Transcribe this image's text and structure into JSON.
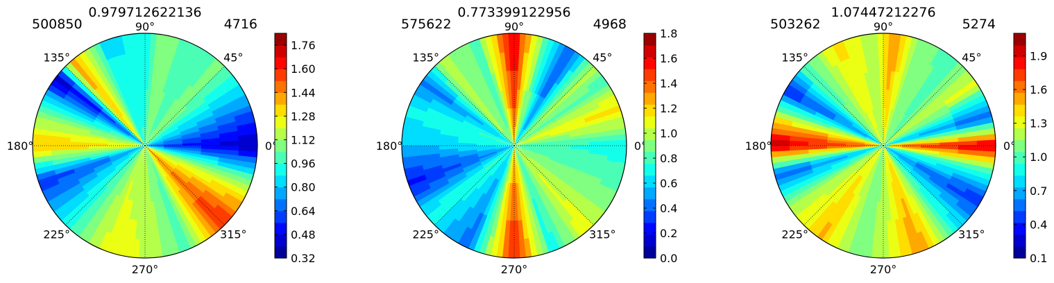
{
  "chart_data": [
    {
      "type": "heatmap",
      "subtype": "polar-filled-contour",
      "title": "0.979712622136",
      "left_label": "500850",
      "right_label": "4716",
      "angle_ticks": [
        "0°",
        "45°",
        "90°",
        "135°",
        "180°",
        "225°",
        "270°",
        "315°"
      ],
      "colorbar": {
        "ticks": [
          "0.32",
          "0.48",
          "0.64",
          "0.80",
          "0.96",
          "1.12",
          "1.28",
          "1.44",
          "1.60",
          "1.76"
        ],
        "vmin": 0.32,
        "vmax": 1.84
      },
      "colormap": "jet",
      "grid": true,
      "angular_profile": [
        {
          "angle": 0,
          "value": 0.35
        },
        {
          "angle": 22,
          "value": 0.7
        },
        {
          "angle": 45,
          "value": 1.05
        },
        {
          "angle": 67,
          "value": 1.0
        },
        {
          "angle": 80,
          "value": 1.1
        },
        {
          "angle": 90,
          "value": 0.9
        },
        {
          "angle": 112,
          "value": 0.85
        },
        {
          "angle": 130,
          "value": 1.45
        },
        {
          "angle": 142,
          "value": 0.4
        },
        {
          "angle": 160,
          "value": 1.0
        },
        {
          "angle": 180,
          "value": 1.4
        },
        {
          "angle": 200,
          "value": 0.55
        },
        {
          "angle": 225,
          "value": 0.9
        },
        {
          "angle": 250,
          "value": 1.25
        },
        {
          "angle": 270,
          "value": 1.2
        },
        {
          "angle": 292,
          "value": 1.0
        },
        {
          "angle": 315,
          "value": 1.65
        },
        {
          "angle": 337,
          "value": 1.2
        },
        {
          "angle": 360,
          "value": 0.35
        }
      ]
    },
    {
      "type": "heatmap",
      "subtype": "polar-filled-contour",
      "title": "0.773399122956",
      "left_label": "575622",
      "right_label": "4968",
      "angle_ticks": [
        "0°",
        "45°",
        "90°",
        "135°",
        "180°",
        "225°",
        "270°",
        "315°"
      ],
      "colorbar": {
        "ticks": [
          "0.0",
          "0.2",
          "0.4",
          "0.6",
          "0.8",
          "1.0",
          "1.2",
          "1.4",
          "1.6",
          "1.8"
        ],
        "vmin": 0.0,
        "vmax": 1.8
      },
      "colormap": "jet",
      "grid": true,
      "angular_profile": [
        {
          "angle": 0,
          "value": 0.7
        },
        {
          "angle": 20,
          "value": 1.2
        },
        {
          "angle": 35,
          "value": 0.8
        },
        {
          "angle": 45,
          "value": 1.0
        },
        {
          "angle": 60,
          "value": 0.3
        },
        {
          "angle": 80,
          "value": 1.1
        },
        {
          "angle": 90,
          "value": 1.7
        },
        {
          "angle": 110,
          "value": 0.8
        },
        {
          "angle": 130,
          "value": 1.0
        },
        {
          "angle": 145,
          "value": 0.4
        },
        {
          "angle": 160,
          "value": 0.7
        },
        {
          "angle": 180,
          "value": 0.55
        },
        {
          "angle": 200,
          "value": 0.2
        },
        {
          "angle": 220,
          "value": 0.7
        },
        {
          "angle": 245,
          "value": 0.4
        },
        {
          "angle": 270,
          "value": 1.6
        },
        {
          "angle": 290,
          "value": 0.7
        },
        {
          "angle": 310,
          "value": 1.1
        },
        {
          "angle": 330,
          "value": 0.9
        },
        {
          "angle": 360,
          "value": 0.7
        }
      ]
    },
    {
      "type": "heatmap",
      "subtype": "polar-filled-contour",
      "title": "1.07447212276",
      "left_label": "503262",
      "right_label": "5274",
      "angle_ticks": [
        "0°",
        "45°",
        "90°",
        "135°",
        "180°",
        "225°",
        "270°",
        "315°"
      ],
      "colorbar": {
        "ticks": [
          "0.1",
          "0.4",
          "0.7",
          "1.0",
          "1.3",
          "1.6",
          "1.9"
        ],
        "vmin": 0.1,
        "vmax": 2.1
      },
      "colormap": "jet",
      "grid": true,
      "angular_profile": [
        {
          "angle": 0,
          "value": 2.0
        },
        {
          "angle": 15,
          "value": 0.5
        },
        {
          "angle": 35,
          "value": 1.3
        },
        {
          "angle": 50,
          "value": 1.0
        },
        {
          "angle": 70,
          "value": 1.1
        },
        {
          "angle": 85,
          "value": 1.6
        },
        {
          "angle": 95,
          "value": 1.2
        },
        {
          "angle": 115,
          "value": 1.4
        },
        {
          "angle": 135,
          "value": 1.0
        },
        {
          "angle": 150,
          "value": 0.4
        },
        {
          "angle": 170,
          "value": 1.6
        },
        {
          "angle": 180,
          "value": 2.0
        },
        {
          "angle": 195,
          "value": 0.5
        },
        {
          "angle": 215,
          "value": 1.2
        },
        {
          "angle": 235,
          "value": 1.5
        },
        {
          "angle": 255,
          "value": 1.1
        },
        {
          "angle": 270,
          "value": 1.2
        },
        {
          "angle": 290,
          "value": 1.6
        },
        {
          "angle": 310,
          "value": 0.9
        },
        {
          "angle": 330,
          "value": 0.4
        },
        {
          "angle": 345,
          "value": 0.9
        },
        {
          "angle": 360,
          "value": 2.0
        }
      ]
    }
  ]
}
